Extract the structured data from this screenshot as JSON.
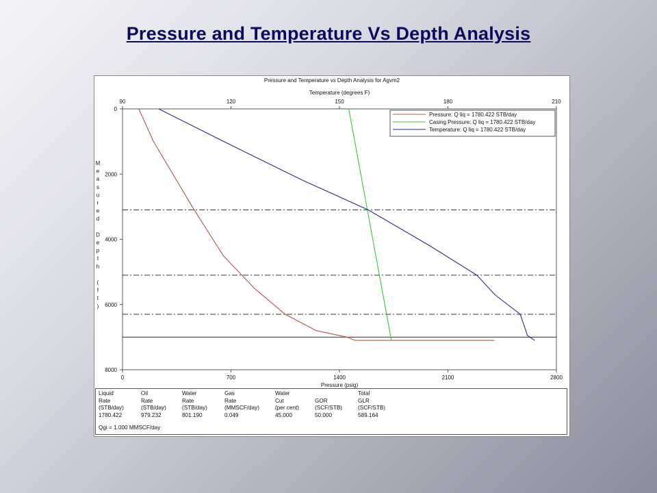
{
  "slide": {
    "title": "Pressure and Temperature Vs Depth Analysis"
  },
  "chart_data": {
    "type": "line",
    "title": "Pressure and Temperature vs Depth Analysis for Agvm2",
    "top_axis": {
      "label": "Temperature (degrees F)",
      "range": [
        90,
        210
      ],
      "ticks": [
        "90",
        "120",
        "150",
        "180",
        "210"
      ]
    },
    "bottom_axis": {
      "label": "Pressure (psig)",
      "range": [
        0,
        2800
      ],
      "ticks": [
        "0",
        "700",
        "1400",
        "2100",
        "2800"
      ]
    },
    "y_axis": {
      "label": "Measured Depth (ft)",
      "range": [
        0,
        8000
      ],
      "inverted": true,
      "ticks": [
        "0",
        "2000",
        "4000",
        "6000",
        "8000"
      ]
    },
    "series": [
      {
        "name": "Pressure: Q liq = 1780.422 STB/day",
        "color": "#c0504d",
        "axis": "pressure",
        "points": [
          [
            105,
            0
          ],
          [
            200,
            1000
          ],
          [
            450,
            3000
          ],
          [
            650,
            4500
          ],
          [
            850,
            5500
          ],
          [
            1050,
            6300
          ],
          [
            1250,
            6800
          ],
          [
            1450,
            7000
          ],
          [
            1500,
            7100
          ],
          [
            2400,
            7100
          ]
        ]
      },
      {
        "name": "Casing Pressure: Q liq = 1780.422 STB/day",
        "color": "#33cc33",
        "axis": "pressure",
        "points": [
          [
            1460,
            0
          ],
          [
            1735,
            7100
          ]
        ]
      },
      {
        "name": "Temperature: Q liq = 1780.422 STB/day",
        "color": "#2a2a90",
        "axis": "temperature",
        "points": [
          [
            100,
            0
          ],
          [
            118,
            1000
          ],
          [
            140,
            2200
          ],
          [
            158,
            3100
          ],
          [
            175,
            4200
          ],
          [
            188,
            5100
          ],
          [
            193,
            5700
          ],
          [
            200,
            6300
          ],
          [
            202,
            6950
          ],
          [
            204,
            7100
          ]
        ]
      }
    ],
    "horizontal_lines": [
      {
        "depth": 3100,
        "style": "dashdot"
      },
      {
        "depth": 5100,
        "style": "dashdot"
      },
      {
        "depth": 6300,
        "style": "dashdot"
      },
      {
        "depth": 7000,
        "style": "solid"
      }
    ],
    "legend": {
      "placement": "top-right"
    },
    "grid": false
  },
  "results_table": {
    "columns": [
      {
        "h1": "Liquid",
        "h2": "Rate",
        "h3": "(STB/day)",
        "value": "1780.422"
      },
      {
        "h1": "Oil",
        "h2": "Rate",
        "h3": "(STB/day)",
        "value": "979.232"
      },
      {
        "h1": "Water",
        "h2": "Rate",
        "h3": "(STB/day)",
        "value": "801.190"
      },
      {
        "h1": "Gas",
        "h2": "Rate",
        "h3": "(MMSCF/day)",
        "value": "0.049"
      },
      {
        "h1": "Water",
        "h2": "Cut",
        "h3": "(per cent)",
        "value": "45.000"
      },
      {
        "h1": "",
        "h2": "GOR",
        "h3": "(SCF/STB)",
        "value": "50.000"
      },
      {
        "h1": "Total",
        "h2": "GLR",
        "h3": "(SCF/STB)",
        "value": "589.164"
      }
    ],
    "footnote": "Qgi = 1.000 MMSCF/day"
  }
}
